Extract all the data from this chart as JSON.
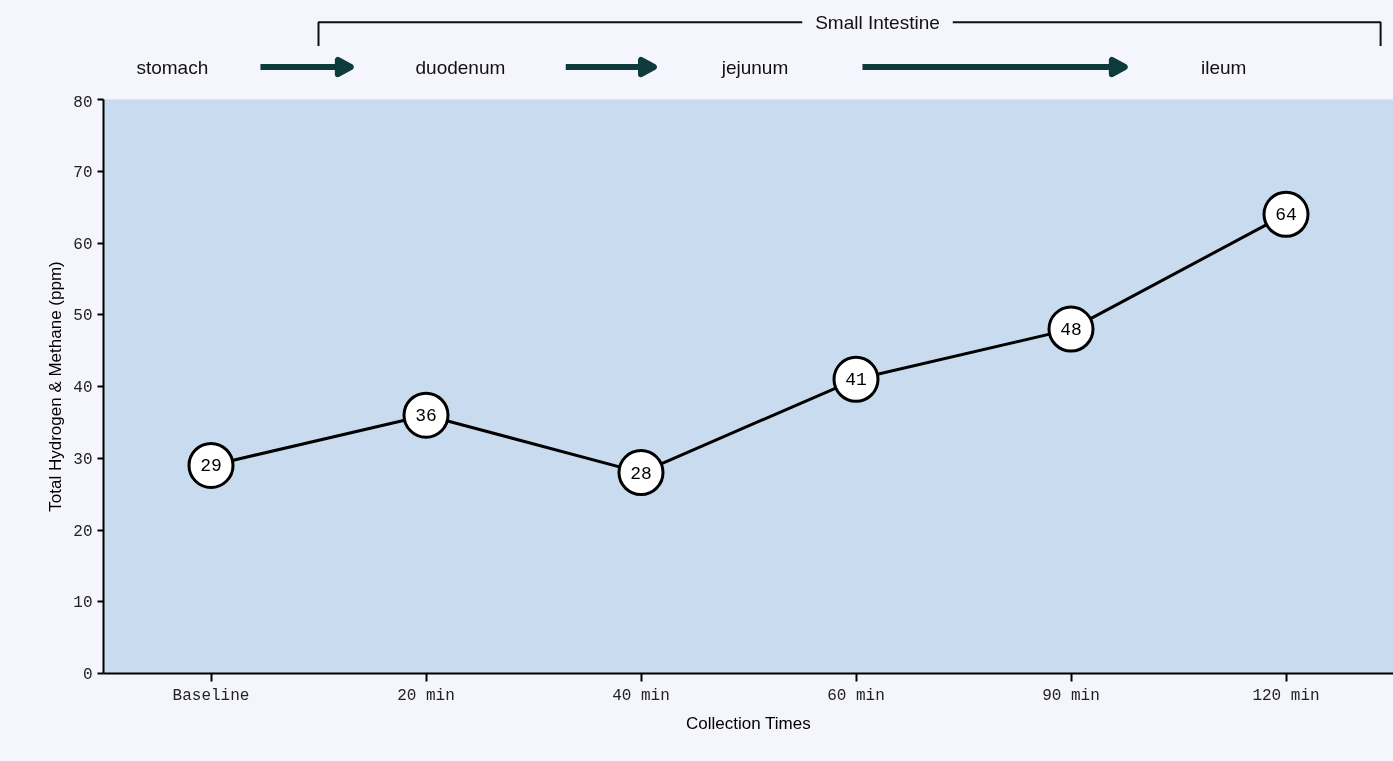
{
  "chart_data": {
    "type": "line",
    "xlabel": "Collection Times",
    "ylabel": "Total Hydrogen & Methane (ppm)",
    "categories": [
      "Baseline",
      "20 min",
      "40 min",
      "60 min",
      "90 min",
      "120 min"
    ],
    "series": [
      {
        "color": "#000000",
        "values": [
          29,
          36,
          28,
          41,
          48,
          64
        ]
      }
    ],
    "ylim": [
      0,
      80
    ],
    "yticks": [
      0,
      10,
      20,
      30,
      40,
      50,
      60,
      70,
      80
    ],
    "data_labels": true,
    "marker": "circle",
    "line_style": "solid",
    "grid": false,
    "annotations": [
      "Small Intestine",
      "stomach",
      "duodenum",
      "jejunum",
      "ileum"
    ]
  }
}
